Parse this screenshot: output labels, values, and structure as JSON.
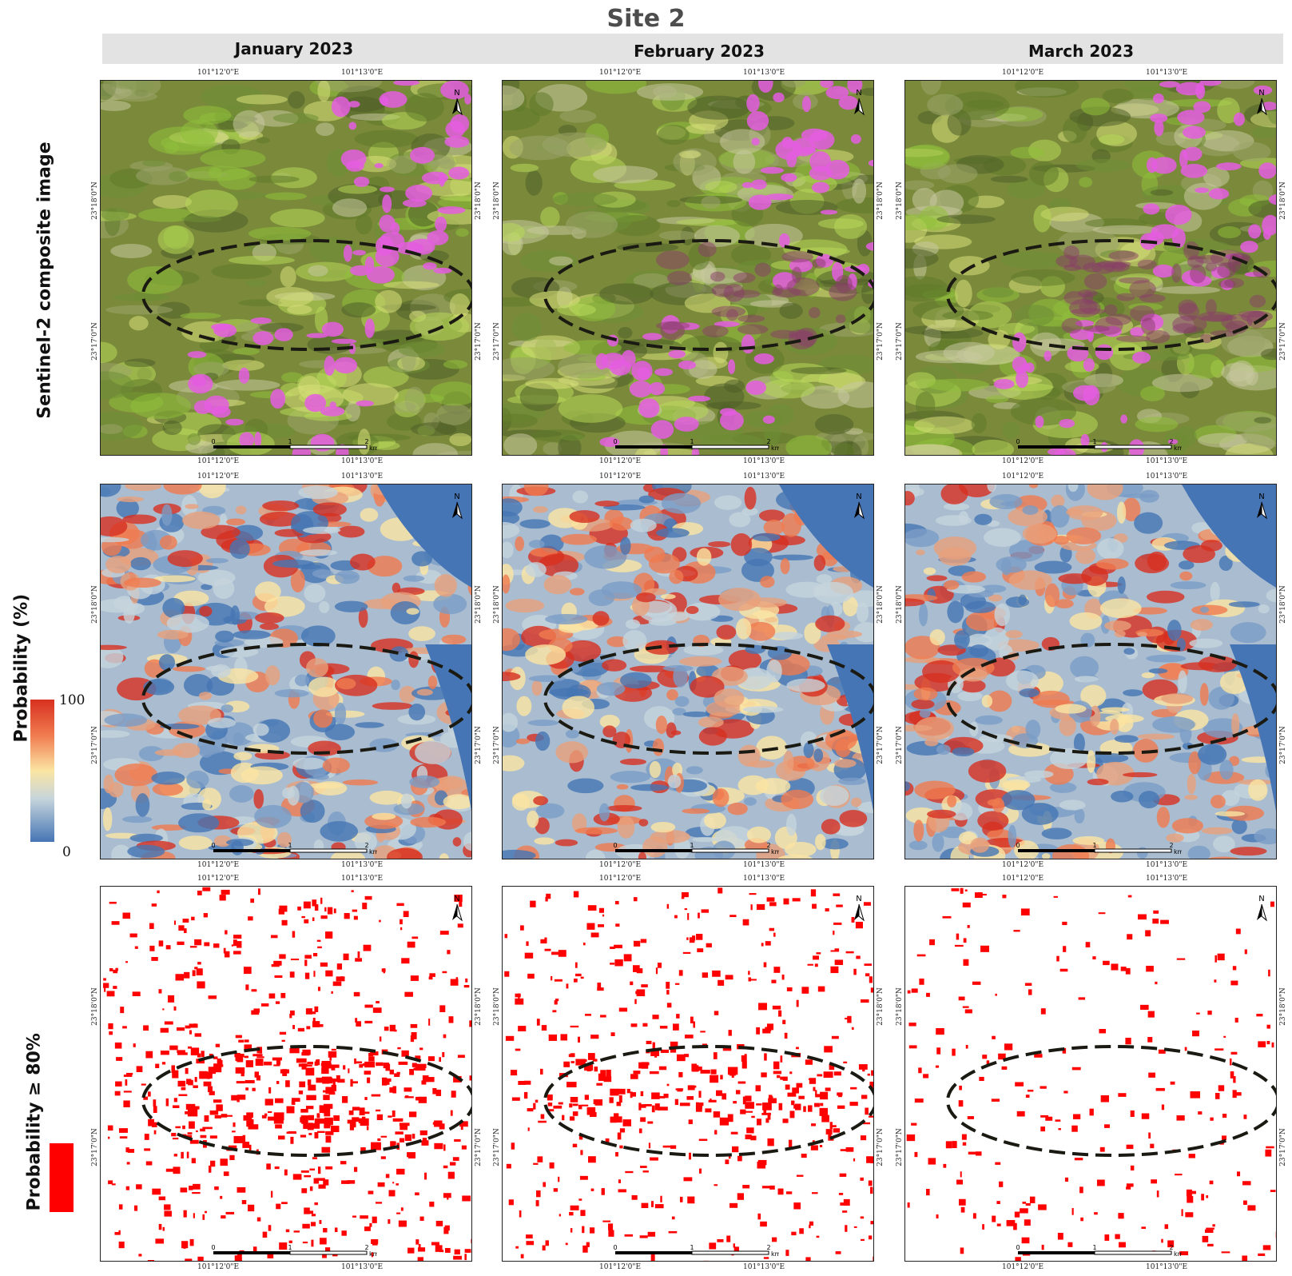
{
  "title": "Site 2",
  "columns": [
    "January  2023",
    "February  2023",
    "March  2023"
  ],
  "row_labels": {
    "composite": "Sentinel-2  composite image",
    "probability": "Probability (%)",
    "threshold": "Probability ≥ 80%"
  },
  "legend": {
    "max": "100",
    "min": "0"
  },
  "coords": {
    "lon_left": "101°12'0\"E",
    "lon_right": "101°13'0\"E",
    "lat_top": "23°18'0\"N",
    "lat_bottom": "23°17'0\"N"
  },
  "scale": {
    "zero": "0",
    "one": "1",
    "two": "2",
    "unit": "km"
  },
  "north_label": "N",
  "colors": {
    "high": "#d7301f",
    "mid": "#fbe5a3",
    "low": "#4575b4",
    "threshold": "#ff0000",
    "ellipse": "#1a1a12"
  }
}
